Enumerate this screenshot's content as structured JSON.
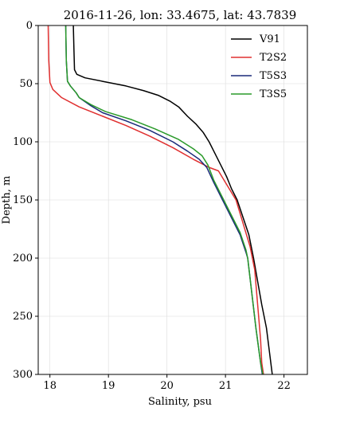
{
  "chart_data": {
    "type": "line",
    "title": "2016-11-26, lon: 33.4675,  lat: 43.7839",
    "xlabel": "Salinity, psu",
    "ylabel": "Depth, m",
    "xlim": [
      17.8,
      22.4
    ],
    "ylim": [
      300,
      0
    ],
    "y_inverted": true,
    "x_ticks": [
      18,
      19,
      20,
      21,
      22
    ],
    "y_ticks": [
      0,
      50,
      100,
      150,
      200,
      250,
      300
    ],
    "grid": true,
    "legend_position": "top-right",
    "series": [
      {
        "name": "V91",
        "color": "#000000",
        "points": [
          [
            18.4,
            0
          ],
          [
            18.41,
            20
          ],
          [
            18.42,
            38
          ],
          [
            18.46,
            42
          ],
          [
            18.6,
            45
          ],
          [
            18.9,
            48
          ],
          [
            19.3,
            52
          ],
          [
            19.6,
            56
          ],
          [
            19.85,
            60
          ],
          [
            20.05,
            65
          ],
          [
            20.2,
            70
          ],
          [
            20.35,
            78
          ],
          [
            20.5,
            85
          ],
          [
            20.62,
            92
          ],
          [
            20.72,
            100
          ],
          [
            20.82,
            110
          ],
          [
            20.92,
            120
          ],
          [
            21.02,
            130
          ],
          [
            21.1,
            140
          ],
          [
            21.2,
            150
          ],
          [
            21.3,
            165
          ],
          [
            21.4,
            180
          ],
          [
            21.48,
            200
          ],
          [
            21.55,
            220
          ],
          [
            21.62,
            240
          ],
          [
            21.7,
            260
          ],
          [
            21.75,
            280
          ],
          [
            21.8,
            300
          ]
        ]
      },
      {
        "name": "T2S2",
        "color": "#e03030",
        "points": [
          [
            17.97,
            0
          ],
          [
            17.98,
            30
          ],
          [
            18.0,
            49
          ],
          [
            18.05,
            55
          ],
          [
            18.2,
            62
          ],
          [
            18.5,
            70
          ],
          [
            18.9,
            78
          ],
          [
            19.3,
            86
          ],
          [
            19.7,
            95
          ],
          [
            20.1,
            105
          ],
          [
            20.45,
            115
          ],
          [
            20.72,
            122
          ],
          [
            20.88,
            125
          ],
          [
            21.0,
            135
          ],
          [
            21.18,
            150
          ],
          [
            21.3,
            170
          ],
          [
            21.42,
            190
          ],
          [
            21.5,
            210
          ],
          [
            21.55,
            240
          ],
          [
            21.6,
            270
          ],
          [
            21.62,
            290
          ],
          [
            21.65,
            300
          ]
        ]
      },
      {
        "name": "T5S3",
        "color": "#1a2a7a",
        "points": [
          [
            18.27,
            0
          ],
          [
            18.28,
            30
          ],
          [
            18.3,
            48
          ],
          [
            18.35,
            52
          ],
          [
            18.45,
            58
          ],
          [
            18.5,
            62
          ],
          [
            18.7,
            69
          ],
          [
            18.9,
            75
          ],
          [
            19.3,
            82
          ],
          [
            19.7,
            90
          ],
          [
            20.1,
            100
          ],
          [
            20.35,
            108
          ],
          [
            20.55,
            115
          ],
          [
            20.68,
            122
          ],
          [
            20.8,
            135
          ],
          [
            20.95,
            150
          ],
          [
            21.1,
            165
          ],
          [
            21.25,
            180
          ],
          [
            21.35,
            195
          ],
          [
            21.38,
            200
          ],
          [
            21.45,
            230
          ],
          [
            21.52,
            260
          ],
          [
            21.6,
            290
          ],
          [
            21.63,
            300
          ]
        ]
      },
      {
        "name": "T3S5",
        "color": "#2a9a2a",
        "points": [
          [
            18.27,
            0
          ],
          [
            18.28,
            30
          ],
          [
            18.3,
            48
          ],
          [
            18.35,
            52
          ],
          [
            18.45,
            58
          ],
          [
            18.5,
            62
          ],
          [
            18.7,
            68
          ],
          [
            18.95,
            74
          ],
          [
            19.4,
            81
          ],
          [
            19.8,
            89
          ],
          [
            20.2,
            98
          ],
          [
            20.45,
            106
          ],
          [
            20.6,
            112
          ],
          [
            20.7,
            120
          ],
          [
            20.8,
            133
          ],
          [
            20.95,
            148
          ],
          [
            21.1,
            163
          ],
          [
            21.25,
            178
          ],
          [
            21.35,
            193
          ],
          [
            21.38,
            200
          ],
          [
            21.45,
            230
          ],
          [
            21.52,
            260
          ],
          [
            21.6,
            290
          ],
          [
            21.64,
            300
          ]
        ]
      }
    ]
  }
}
